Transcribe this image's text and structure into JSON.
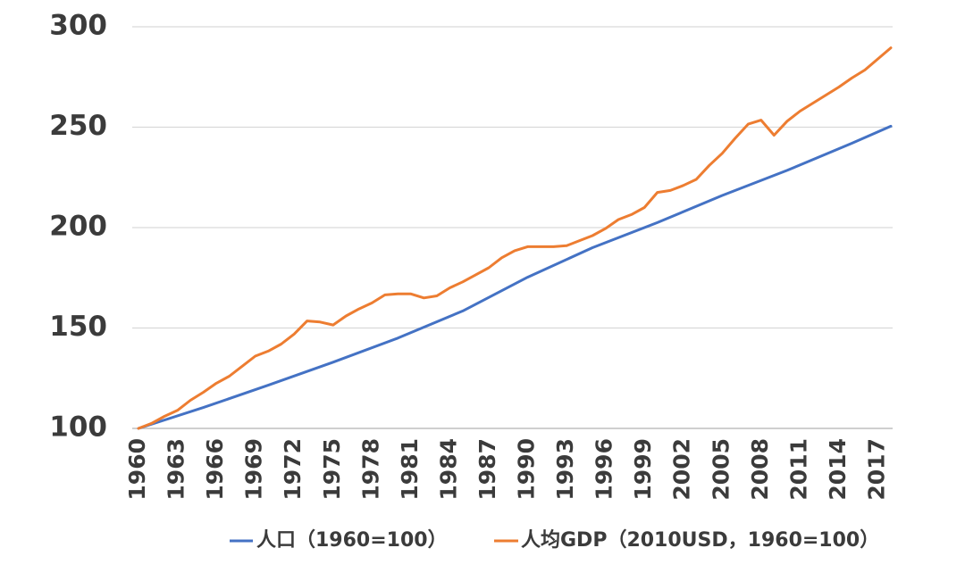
{
  "chart_data": {
    "type": "line",
    "title": "",
    "xlabel": "",
    "ylabel": "",
    "x_range": [
      1960,
      2018
    ],
    "ylim": [
      100,
      300
    ],
    "yticks": [
      "100",
      "150",
      "200",
      "250",
      "300"
    ],
    "xticks": [
      "1960",
      "1963",
      "1966",
      "1969",
      "1972",
      "1975",
      "1978",
      "1981",
      "1984",
      "1987",
      "1990",
      "1993",
      "1996",
      "1999",
      "2002",
      "2005",
      "2008",
      "2011",
      "2014",
      "2017"
    ],
    "grid": "horizontal",
    "legend_position": "bottom",
    "series": [
      {
        "name": "人口（1960=100）",
        "color": "#4472c4",
        "x": [
          1960,
          1965,
          1970,
          1975,
          1980,
          1985,
          1990,
          1995,
          2000,
          2005,
          2010,
          2015,
          2018
        ],
        "y": [
          100,
          110.4,
          121.5,
          133,
          145,
          158.5,
          175.3,
          190,
          202.5,
          216,
          228.5,
          242,
          250.5
        ]
      },
      {
        "name": "人均GDP（2010USD，1960=100）",
        "color": "#ed7d31",
        "x": [
          1960,
          1961,
          1962,
          1963,
          1964,
          1965,
          1966,
          1967,
          1968,
          1969,
          1970,
          1971,
          1972,
          1973,
          1974,
          1975,
          1976,
          1977,
          1978,
          1979,
          1980,
          1981,
          1982,
          1983,
          1984,
          1985,
          1986,
          1987,
          1988,
          1989,
          1990,
          1991,
          1992,
          1993,
          1994,
          1995,
          1996,
          1997,
          1998,
          1999,
          2000,
          2001,
          2002,
          2003,
          2004,
          2005,
          2006,
          2007,
          2008,
          2009,
          2010,
          2011,
          2012,
          2013,
          2014,
          2015,
          2016,
          2017,
          2018
        ],
        "y": [
          100,
          102.5,
          106,
          109,
          114,
          118,
          122.5,
          126,
          131,
          136,
          138.5,
          142,
          147,
          153.5,
          153,
          151.5,
          156,
          159.5,
          162.5,
          166.5,
          167,
          167,
          165,
          166,
          170,
          173,
          176.5,
          180,
          185,
          188.5,
          190.5,
          190.5,
          190.5,
          191,
          193.5,
          196,
          199.5,
          204,
          206.5,
          210,
          217.5,
          218.5,
          221,
          224,
          231,
          237,
          244.5,
          251.5,
          253.5,
          246,
          253,
          258,
          262,
          266,
          270,
          274.5,
          278.5,
          284,
          289.5
        ]
      }
    ]
  }
}
